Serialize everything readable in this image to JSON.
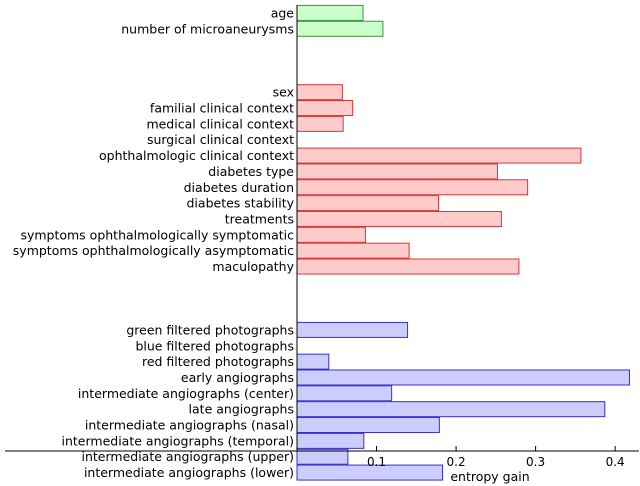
{
  "chart_data": {
    "type": "bar",
    "orientation": "horizontal",
    "xlabel": "entropy gain",
    "xlim": [
      0,
      0.43
    ],
    "xticks": [
      0.1,
      0.2,
      0.3,
      0.4
    ],
    "xtick_labels": [
      "0.1",
      "0.2",
      "0.3",
      "0.4"
    ],
    "grid": false,
    "legend": "none",
    "groups": [
      {
        "color": "#ccffcc",
        "edge": "#339933",
        "categories": [
          "age",
          "number of microaneurysms"
        ],
        "values": [
          0.083,
          0.108
        ]
      },
      {
        "color": "#ffcccc",
        "edge": "#dd3333",
        "categories": [
          "sex",
          "familial clinical context",
          "medical clinical context",
          "surgical clinical context",
          "ophthalmologic clinical context",
          "diabetes type",
          "diabetes duration",
          "diabetes stability",
          "treatments",
          "symptoms ophthalmologically symptomatic",
          "symptoms ophthalmologically asymptomatic",
          "maculopathy"
        ],
        "values": [
          0.057,
          0.07,
          0.058,
          0.0,
          0.357,
          0.252,
          0.29,
          0.178,
          0.257,
          0.086,
          0.141,
          0.279
        ]
      },
      {
        "color": "#ccccff",
        "edge": "#3333cc",
        "categories": [
          "green filtered photographs",
          "blue filtered photographs",
          "red filtered photographs",
          "early angiographs",
          "intermediate angiographs (center)",
          "late angiographs",
          "intermediate angiographs (nasal)",
          "intermediate angiographs (temporal)",
          "intermediate angiographs (upper)",
          "intermediate angiographs (lower)"
        ],
        "values": [
          0.139,
          0.0,
          0.04,
          0.418,
          0.119,
          0.387,
          0.179,
          0.084,
          0.064,
          0.183
        ]
      }
    ]
  }
}
